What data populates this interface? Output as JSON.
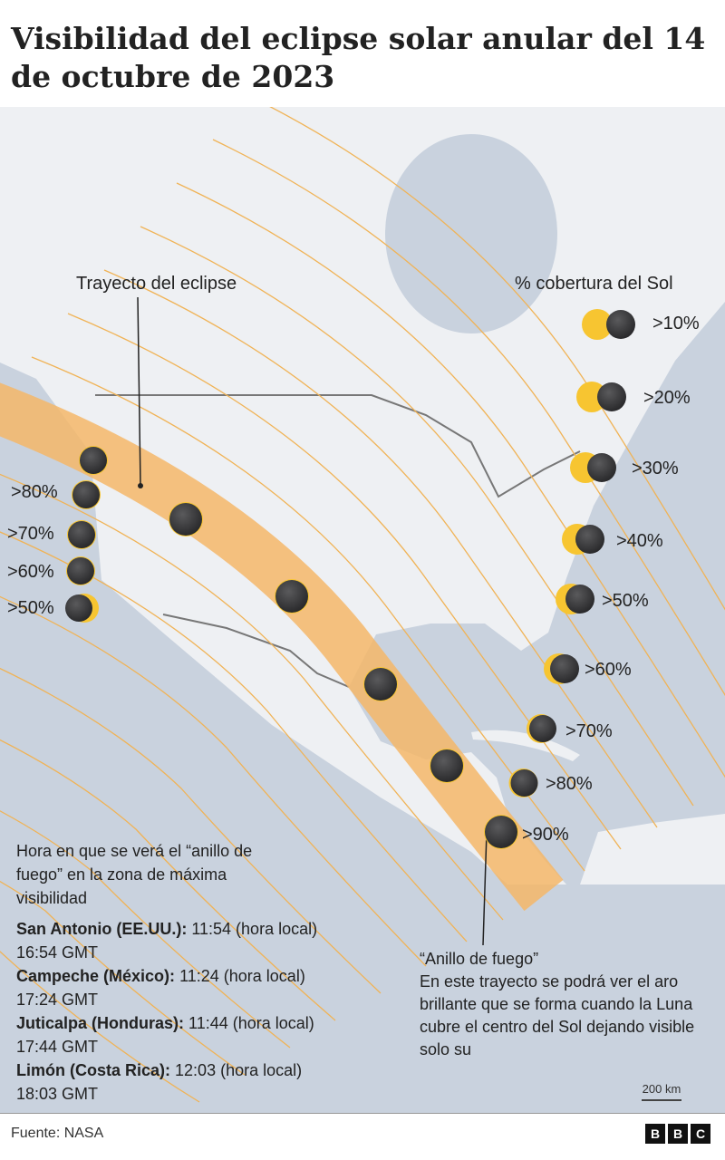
{
  "title": "Visibilidad del eclipse solar anular del 14  de octubre de 2023",
  "map": {
    "path_label": "Trayecto del eclipse",
    "legend_title": "% cobertura del Sol",
    "legend_items": [
      ">10%",
      ">20%",
      ">30%",
      ">40%",
      ">50%",
      ">60%",
      ">70%",
      ">80%",
      ">90%"
    ],
    "west_labels": [
      ">80%",
      ">70%",
      ">60%",
      ">50%"
    ],
    "colors": {
      "water": "#c9d2de",
      "land": "#eef0f3",
      "path_band": "#f5b768",
      "coverage_lines": "#f0b356",
      "sun": "#f7c531",
      "moon": "#3a3a3c"
    },
    "scale": "200 km"
  },
  "info": {
    "heading": "Hora en que se verá el “anillo de fuego” en la zona de máxima visibilidad",
    "cities": [
      {
        "place": "San Antonio (EE.UU.):",
        "local": "11:54 (hora local)",
        "gmt": "16:54 GMT"
      },
      {
        "place": "Campeche (México):",
        "local": "11:24 (hora local)",
        "gmt": "17:24 GMT"
      },
      {
        "place": "Juticalpa (Honduras):",
        "local": "11:44  (hora local)",
        "gmt": "17:44 GMT"
      },
      {
        "place": "Limón (Costa Rica):",
        "local": "12:03 (hora local)",
        "gmt": "18:03 GMT"
      }
    ]
  },
  "ring": {
    "title": "“Anillo de fuego”",
    "text": "En este trayecto se podrá ver el aro brillante que se forma cuando la Luna cubre el centro del Sol dejando visible solo su"
  },
  "footer": {
    "source": "Fuente: NASA",
    "logo": "BBC"
  }
}
